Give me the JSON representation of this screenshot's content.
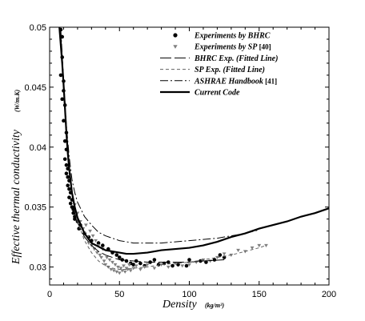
{
  "chart_data": {
    "type": "scatter",
    "xlabel": "Density",
    "xlabel_unit": "(kg/m³)",
    "ylabel": "Effective thermal conductivity",
    "ylabel_unit": "(W/m.K)",
    "xlim": [
      0,
      200
    ],
    "ylim": [
      0.0285,
      0.05
    ],
    "x_ticks": [
      0,
      50,
      100,
      150,
      200
    ],
    "y_ticks": [
      0.03,
      0.035,
      0.04,
      0.045,
      0.05
    ],
    "y_tick_labels": [
      "0.03",
      "0.035",
      "0.04",
      "0.045",
      "0.05"
    ],
    "grid": false,
    "legend_position": "top-right",
    "series": [
      {
        "name": "Experiments by BHRC",
        "ref": "",
        "kind": "scatter",
        "marker": "circle",
        "color": "#000000",
        "points": [
          [
            8,
            0.0498
          ],
          [
            9,
            0.0492
          ],
          [
            9,
            0.0475
          ],
          [
            8,
            0.046
          ],
          [
            10,
            0.0455
          ],
          [
            10,
            0.0447
          ],
          [
            9,
            0.044
          ],
          [
            11,
            0.0435
          ],
          [
            10,
            0.0422
          ],
          [
            12,
            0.0412
          ],
          [
            11,
            0.0405
          ],
          [
            12,
            0.0398
          ],
          [
            11,
            0.039
          ],
          [
            12,
            0.0385
          ],
          [
            13,
            0.0382
          ],
          [
            12,
            0.0378
          ],
          [
            13,
            0.0375
          ],
          [
            14,
            0.0372
          ],
          [
            13,
            0.0368
          ],
          [
            14,
            0.0365
          ],
          [
            15,
            0.0362
          ],
          [
            14,
            0.0358
          ],
          [
            16,
            0.0356
          ],
          [
            15,
            0.0353
          ],
          [
            16,
            0.035
          ],
          [
            17,
            0.0348
          ],
          [
            17,
            0.0345
          ],
          [
            18,
            0.0342
          ],
          [
            18,
            0.034
          ],
          [
            20,
            0.0338
          ],
          [
            22,
            0.0335
          ],
          [
            21,
            0.0332
          ],
          [
            25,
            0.0328
          ],
          [
            28,
            0.0325
          ],
          [
            30,
            0.0322
          ],
          [
            35,
            0.032
          ],
          [
            38,
            0.0318
          ],
          [
            42,
            0.0315
          ],
          [
            45,
            0.0312
          ],
          [
            48,
            0.031
          ],
          [
            50,
            0.0308
          ],
          [
            52,
            0.0306
          ],
          [
            55,
            0.0305
          ],
          [
            58,
            0.0303
          ],
          [
            60,
            0.0302
          ],
          [
            62,
            0.0305
          ],
          [
            65,
            0.0303
          ],
          [
            68,
            0.0301
          ],
          [
            72,
            0.0304
          ],
          [
            75,
            0.0306
          ],
          [
            78,
            0.0302
          ],
          [
            82,
            0.0303
          ],
          [
            85,
            0.0304
          ],
          [
            88,
            0.0301
          ],
          [
            92,
            0.0302
          ],
          [
            98,
            0.0301
          ],
          [
            100,
            0.0306
          ],
          [
            108,
            0.0305
          ],
          [
            112,
            0.0304
          ],
          [
            118,
            0.0306
          ],
          [
            122,
            0.031
          ],
          [
            125,
            0.0308
          ]
        ]
      },
      {
        "name": "Experiments by SP",
        "ref": "[40]",
        "kind": "scatter",
        "marker": "triangle-down",
        "color": "#808080",
        "points": [
          [
            18,
            0.0352
          ],
          [
            20,
            0.0345
          ],
          [
            22,
            0.0338
          ],
          [
            24,
            0.0332
          ],
          [
            25,
            0.0328
          ],
          [
            26,
            0.0335
          ],
          [
            27,
            0.0325
          ],
          [
            28,
            0.032
          ],
          [
            29,
            0.033
          ],
          [
            30,
            0.0318
          ],
          [
            31,
            0.0326
          ],
          [
            32,
            0.0315
          ],
          [
            33,
            0.0322
          ],
          [
            34,
            0.0312
          ],
          [
            35,
            0.0318
          ],
          [
            36,
            0.031
          ],
          [
            37,
            0.0308
          ],
          [
            38,
            0.0315
          ],
          [
            39,
            0.0305
          ],
          [
            40,
            0.0302
          ],
          [
            41,
            0.0308
          ],
          [
            42,
            0.03
          ],
          [
            43,
            0.0306
          ],
          [
            44,
            0.0298
          ],
          [
            45,
            0.0304
          ],
          [
            46,
            0.0297
          ],
          [
            47,
            0.0302
          ],
          [
            48,
            0.0296
          ],
          [
            49,
            0.03
          ],
          [
            50,
            0.0295
          ],
          [
            51,
            0.0299
          ],
          [
            52,
            0.0297
          ],
          [
            53,
            0.0301
          ],
          [
            54,
            0.0296
          ],
          [
            55,
            0.0299
          ],
          [
            56,
            0.0298
          ],
          [
            57,
            0.0302
          ],
          [
            58,
            0.0297
          ],
          [
            60,
            0.0299
          ],
          [
            62,
            0.0301
          ],
          [
            65,
            0.0298
          ],
          [
            68,
            0.03
          ],
          [
            70,
            0.0302
          ],
          [
            75,
            0.0299
          ],
          [
            80,
            0.0302
          ],
          [
            85,
            0.03
          ],
          [
            90,
            0.0303
          ],
          [
            95,
            0.0301
          ],
          [
            100,
            0.0302
          ],
          [
            105,
            0.0304
          ],
          [
            110,
            0.0306
          ],
          [
            115,
            0.0305
          ],
          [
            120,
            0.0308
          ],
          [
            125,
            0.0311
          ],
          [
            130,
            0.031
          ],
          [
            135,
            0.0314
          ],
          [
            140,
            0.0313
          ],
          [
            145,
            0.0316
          ],
          [
            150,
            0.0318
          ],
          [
            155,
            0.0318
          ]
        ]
      },
      {
        "name": "BHRC Exp. (Fitted Line)",
        "ref": "",
        "kind": "line",
        "dash": "14,4",
        "width": 1,
        "color": "#000000",
        "points": [
          [
            8,
            0.0495
          ],
          [
            10,
            0.0455
          ],
          [
            12,
            0.0415
          ],
          [
            14,
            0.0385
          ],
          [
            16,
            0.0362
          ],
          [
            18,
            0.0345
          ],
          [
            20,
            0.0337
          ],
          [
            25,
            0.0325
          ],
          [
            30,
            0.0318
          ],
          [
            35,
            0.0313
          ],
          [
            40,
            0.031
          ],
          [
            45,
            0.0308
          ],
          [
            50,
            0.0306
          ],
          [
            60,
            0.0305
          ],
          [
            70,
            0.0304
          ],
          [
            80,
            0.0304
          ],
          [
            90,
            0.0304
          ],
          [
            100,
            0.0304
          ],
          [
            110,
            0.0305
          ],
          [
            125,
            0.0306
          ]
        ]
      },
      {
        "name": "SP Exp. (Fitted Line)",
        "ref": "",
        "kind": "line",
        "dash": "4,3",
        "width": 1,
        "color": "#606060",
        "points": [
          [
            18,
            0.0348
          ],
          [
            20,
            0.0338
          ],
          [
            25,
            0.0322
          ],
          [
            30,
            0.0312
          ],
          [
            35,
            0.0305
          ],
          [
            40,
            0.0301
          ],
          [
            45,
            0.0299
          ],
          [
            50,
            0.0298
          ],
          [
            55,
            0.0298
          ],
          [
            60,
            0.0299
          ],
          [
            70,
            0.03
          ],
          [
            80,
            0.0302
          ],
          [
            90,
            0.0303
          ],
          [
            100,
            0.0304
          ],
          [
            110,
            0.0306
          ],
          [
            120,
            0.0308
          ],
          [
            130,
            0.031
          ],
          [
            140,
            0.0313
          ],
          [
            150,
            0.0316
          ],
          [
            155,
            0.0318
          ]
        ]
      },
      {
        "name": "ASHRAE Handbook",
        "ref": "[41]",
        "kind": "line",
        "dash": "10,3,2,3",
        "width": 1,
        "color": "#000000",
        "points": [
          [
            8,
            0.0498
          ],
          [
            10,
            0.0456
          ],
          [
            12,
            0.0418
          ],
          [
            14,
            0.0392
          ],
          [
            16,
            0.0373
          ],
          [
            18,
            0.0362
          ],
          [
            20,
            0.0354
          ],
          [
            25,
            0.0342
          ],
          [
            30,
            0.0335
          ],
          [
            35,
            0.0329
          ],
          [
            40,
            0.0326
          ],
          [
            45,
            0.0324
          ],
          [
            50,
            0.0322
          ],
          [
            60,
            0.032
          ],
          [
            70,
            0.032
          ],
          [
            80,
            0.032
          ],
          [
            90,
            0.0321
          ],
          [
            100,
            0.0322
          ],
          [
            110,
            0.0323
          ],
          [
            120,
            0.0324
          ],
          [
            130,
            0.0326
          ],
          [
            140,
            0.0328
          ],
          [
            150,
            0.0331
          ]
        ]
      },
      {
        "name": "Current Code",
        "ref": "",
        "kind": "line",
        "dash": "",
        "width": 2.2,
        "color": "#000000",
        "points": [
          [
            7,
            0.05
          ],
          [
            8,
            0.0485
          ],
          [
            9,
            0.047
          ],
          [
            10,
            0.0452
          ],
          [
            11,
            0.0432
          ],
          [
            12,
            0.0412
          ],
          [
            13,
            0.0395
          ],
          [
            14,
            0.0382
          ],
          [
            15,
            0.0372
          ],
          [
            16,
            0.0362
          ],
          [
            18,
            0.035
          ],
          [
            20,
            0.0341
          ],
          [
            25,
            0.0328
          ],
          [
            30,
            0.032
          ],
          [
            35,
            0.0317
          ],
          [
            40,
            0.0314
          ],
          [
            45,
            0.0313
          ],
          [
            50,
            0.0312
          ],
          [
            55,
            0.0311
          ],
          [
            60,
            0.0311
          ],
          [
            70,
            0.0312
          ],
          [
            80,
            0.0314
          ],
          [
            90,
            0.0315
          ],
          [
            100,
            0.0316
          ],
          [
            110,
            0.0318
          ],
          [
            120,
            0.0321
          ],
          [
            130,
            0.0325
          ],
          [
            140,
            0.0328
          ],
          [
            150,
            0.0332
          ],
          [
            160,
            0.0335
          ],
          [
            170,
            0.0338
          ],
          [
            180,
            0.0342
          ],
          [
            190,
            0.0345
          ],
          [
            200,
            0.0349
          ]
        ]
      }
    ]
  }
}
